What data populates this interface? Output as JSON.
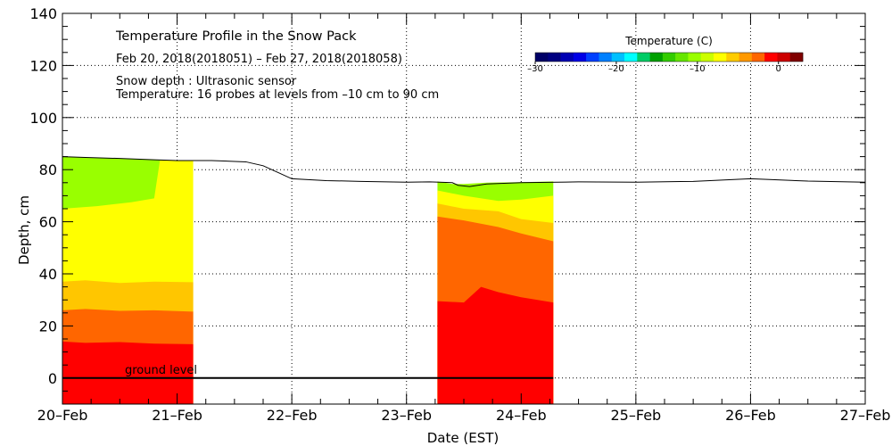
{
  "chart_data": {
    "type": "area",
    "title": "Temperature Profile in the Snow Pack",
    "subtitle": "Feb 20, 2018(2018051) – Feb 27, 2018(2018058)",
    "notes": [
      "Snow depth : Ultrasonic sensor",
      "Temperature: 16 probes at levels from –10 cm to 90 cm"
    ],
    "xlabel": "Date (EST)",
    "ylabel": "Depth, cm",
    "x_ticks": [
      "20–Feb",
      "21–Feb",
      "22–Feb",
      "23–Feb",
      "24–Feb",
      "25–Feb",
      "26–Feb",
      "27–Feb"
    ],
    "xlim": [
      0,
      7
    ],
    "ylim": [
      -10,
      140
    ],
    "y_ticks": [
      0,
      20,
      40,
      60,
      80,
      100,
      120,
      140
    ],
    "grid": true,
    "ground_level": {
      "y": 0,
      "label": "ground level"
    },
    "colorbar": {
      "label": "Temperature (C)",
      "placement": "top-right",
      "range": [
        -30,
        3
      ],
      "ticks": [
        "–30",
        "–20",
        "–10",
        "0"
      ],
      "tick_values": [
        -30,
        -20,
        -10,
        0
      ],
      "colors": [
        "#000066",
        "#000080",
        "#0000b3",
        "#0000e6",
        "#0040ff",
        "#0080ff",
        "#00c0ff",
        "#00ffff",
        "#00cc66",
        "#00a000",
        "#33cc00",
        "#66e600",
        "#99ff00",
        "#ccff00",
        "#ffff00",
        "#ffcc00",
        "#ff9900",
        "#ff6600",
        "#ff0000",
        "#cc0000",
        "#800000"
      ]
    },
    "band_colors": {
      "red": "#ff0000",
      "dark_orange": "#ff6600",
      "orange": "#ffc600",
      "yellow": "#ffff00",
      "yellow_green": "#99ff00"
    },
    "snow_depth": {
      "name": "Snow depth",
      "color": "#000000",
      "days": [
        0,
        0.2,
        0.5,
        0.8,
        1.0,
        1.3,
        1.6,
        1.75,
        1.9,
        2.0,
        2.3,
        2.6,
        3.0,
        3.2,
        3.4,
        3.45,
        3.55,
        3.7,
        4.0,
        4.5,
        5.0,
        5.5,
        6.0,
        6.5,
        7.0
      ],
      "depth_cm": [
        85,
        84.7,
        84.3,
        83.8,
        83.5,
        83.5,
        83,
        81.5,
        78.5,
        76.5,
        75.8,
        75.5,
        75.2,
        75.3,
        75,
        74,
        73.5,
        74.5,
        75,
        75.3,
        75.2,
        75.5,
        76.5,
        75.6,
        75.2
      ]
    },
    "temperature_segments": [
      {
        "start_day": 0,
        "end_day": 1.14,
        "bands": [
          {
            "color": "red",
            "days": [
              0,
              0.2,
              0.5,
              0.8,
              1.14
            ],
            "top_cm": [
              14,
              13.5,
              13.8,
              13.2,
              13
            ]
          },
          {
            "color": "dark_orange",
            "days": [
              0,
              0.2,
              0.5,
              0.8,
              1.14
            ],
            "top_cm": [
              26,
              26.5,
              25.8,
              26,
              25.5
            ]
          },
          {
            "color": "orange",
            "days": [
              0,
              0.2,
              0.5,
              0.8,
              1.14
            ],
            "top_cm": [
              37,
              37.5,
              36.5,
              37,
              36.8
            ]
          },
          {
            "color": "yellow",
            "days": [
              0,
              0.3,
              0.6,
              0.8,
              0.85,
              0.95,
              1.14
            ],
            "top_cm": [
              65,
              66,
              67.5,
              69,
              83.5,
              83.5,
              83.3
            ]
          },
          {
            "color": "yellow_green",
            "days": [
              0,
              0.2,
              0.5,
              0.8,
              0.95
            ],
            "top_cm": [
              85,
              84.7,
              84.3,
              83.8,
              83.5
            ]
          }
        ]
      },
      {
        "start_day": 3.27,
        "end_day": 4.28,
        "bands": [
          {
            "color": "red",
            "days": [
              3.27,
              3.5,
              3.65,
              3.8,
              4.0,
              4.28
            ],
            "top_cm": [
              29.5,
              29,
              35,
              33,
              31,
              29
            ]
          },
          {
            "color": "dark_orange",
            "days": [
              3.27,
              3.5,
              3.8,
              4.0,
              4.28
            ],
            "top_cm": [
              62,
              60.5,
              58,
              55.5,
              52.5
            ]
          },
          {
            "color": "orange",
            "days": [
              3.27,
              3.5,
              3.8,
              4.0,
              4.28
            ],
            "top_cm": [
              67,
              65,
              64,
              61,
              59.5
            ]
          },
          {
            "color": "yellow",
            "days": [
              3.27,
              3.5,
              3.8,
              4.0,
              4.28
            ],
            "top_cm": [
              72,
              70,
              68,
              68.5,
              70
            ]
          },
          {
            "color": "yellow_green",
            "days": [
              3.27,
              3.4,
              3.5,
              3.7,
              4.0,
              4.28
            ],
            "top_cm": [
              75.5,
              74.5,
              74.5,
              75,
              75.2,
              75.5
            ]
          }
        ]
      }
    ]
  }
}
